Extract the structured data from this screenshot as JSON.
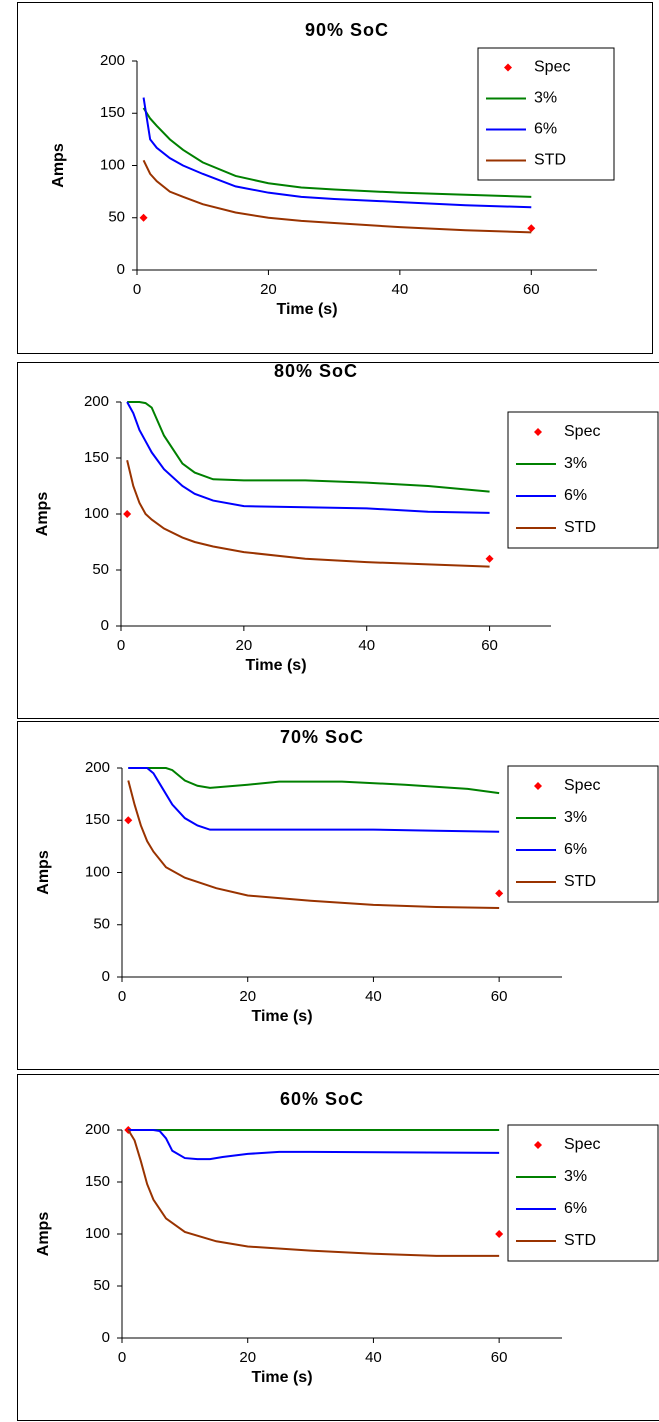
{
  "chart_data": [
    {
      "type": "line",
      "title": "90% SoC",
      "x_label": "Time (s)",
      "y_label": "Amps",
      "xlim": [
        0,
        70
      ],
      "xticks": [
        0,
        20,
        40,
        60
      ],
      "ylim": [
        0,
        200
      ],
      "yticks": [
        0,
        50,
        100,
        150,
        200
      ],
      "grid": false,
      "legend": "upper right",
      "series": [
        {
          "name": "Spec",
          "color": "#ff0000",
          "style": "marker",
          "x": [
            1,
            60
          ],
          "values": [
            50,
            40
          ]
        },
        {
          "name": "3%",
          "color": "#008000",
          "style": "line",
          "x": [
            1,
            2,
            3,
            5,
            7,
            10,
            15,
            20,
            25,
            30,
            40,
            50,
            60
          ],
          "values": [
            155,
            145,
            138,
            125,
            115,
            103,
            90,
            83,
            79,
            77,
            74,
            72,
            70
          ]
        },
        {
          "name": "6%",
          "color": "#0000ff",
          "style": "line",
          "x": [
            1,
            2,
            3,
            5,
            7,
            10,
            15,
            20,
            25,
            30,
            40,
            50,
            60
          ],
          "values": [
            165,
            125,
            117,
            107,
            100,
            92,
            80,
            74,
            70,
            68,
            65,
            62,
            60
          ]
        },
        {
          "name": "STD",
          "color": "#993300",
          "style": "line",
          "x": [
            1,
            2,
            3,
            5,
            7,
            10,
            15,
            20,
            25,
            30,
            40,
            50,
            60
          ],
          "values": [
            105,
            92,
            85,
            75,
            70,
            63,
            55,
            50,
            47,
            45,
            41,
            38,
            36
          ]
        }
      ]
    },
    {
      "type": "line",
      "title": "80% SoC",
      "x_label": "Time (s)",
      "y_label": "Amps",
      "xlim": [
        0,
        70
      ],
      "xticks": [
        0,
        20,
        40,
        60
      ],
      "ylim": [
        0,
        200
      ],
      "yticks": [
        0,
        50,
        100,
        150,
        200
      ],
      "grid": false,
      "legend": "upper right",
      "series": [
        {
          "name": "Spec",
          "color": "#ff0000",
          "style": "marker",
          "x": [
            1,
            60
          ],
          "values": [
            100,
            60
          ]
        },
        {
          "name": "3%",
          "color": "#008000",
          "style": "line",
          "x": [
            1,
            2,
            3,
            4,
            5,
            7,
            10,
            12,
            15,
            20,
            30,
            40,
            50,
            60
          ],
          "values": [
            200,
            200,
            200,
            199,
            195,
            170,
            145,
            137,
            131,
            130,
            130,
            128,
            125,
            120
          ]
        },
        {
          "name": "6%",
          "color": "#0000ff",
          "style": "line",
          "x": [
            1,
            2,
            3,
            4,
            5,
            7,
            10,
            12,
            15,
            20,
            30,
            40,
            50,
            60
          ],
          "values": [
            200,
            190,
            175,
            165,
            155,
            140,
            125,
            118,
            112,
            107,
            106,
            105,
            102,
            101
          ]
        },
        {
          "name": "STD",
          "color": "#993300",
          "style": "line",
          "x": [
            1,
            2,
            3,
            4,
            5,
            7,
            10,
            12,
            15,
            20,
            30,
            40,
            50,
            60
          ],
          "values": [
            148,
            125,
            110,
            100,
            95,
            87,
            79,
            75,
            71,
            66,
            60,
            57,
            55,
            53
          ]
        }
      ]
    },
    {
      "type": "line",
      "title": "70% SoC",
      "x_label": "Time (s)",
      "y_label": "Amps",
      "xlim": [
        0,
        70
      ],
      "xticks": [
        0,
        20,
        40,
        60
      ],
      "ylim": [
        0,
        200
      ],
      "yticks": [
        0,
        50,
        100,
        150,
        200
      ],
      "grid": false,
      "legend": "upper right",
      "series": [
        {
          "name": "Spec",
          "color": "#ff0000",
          "style": "marker",
          "x": [
            1,
            60
          ],
          "values": [
            150,
            80
          ]
        },
        {
          "name": "3%",
          "color": "#008000",
          "style": "line",
          "x": [
            1,
            3,
            5,
            7,
            8,
            10,
            12,
            14,
            20,
            25,
            35,
            45,
            55,
            60
          ],
          "values": [
            200,
            200,
            200,
            200,
            198,
            188,
            183,
            181,
            184,
            187,
            187,
            184,
            180,
            176
          ]
        },
        {
          "name": "6%",
          "color": "#0000ff",
          "style": "line",
          "x": [
            1,
            3,
            4,
            5,
            6,
            8,
            10,
            12,
            14,
            20,
            30,
            40,
            50,
            60
          ],
          "values": [
            200,
            200,
            200,
            195,
            185,
            165,
            152,
            145,
            141,
            141,
            141,
            141,
            140,
            139
          ]
        },
        {
          "name": "STD",
          "color": "#993300",
          "style": "line",
          "x": [
            1,
            2,
            3,
            4,
            5,
            7,
            10,
            15,
            20,
            30,
            40,
            50,
            60
          ],
          "values": [
            188,
            165,
            145,
            130,
            120,
            105,
            95,
            85,
            78,
            73,
            69,
            67,
            66
          ]
        }
      ]
    },
    {
      "type": "line",
      "title": "60% SoC",
      "x_label": "Time (s)",
      "y_label": "Amps",
      "xlim": [
        0,
        70
      ],
      "xticks": [
        0,
        20,
        40,
        60
      ],
      "ylim": [
        0,
        200
      ],
      "yticks": [
        0,
        50,
        100,
        150,
        200
      ],
      "grid": false,
      "legend": "upper right",
      "series": [
        {
          "name": "Spec",
          "color": "#ff0000",
          "style": "marker",
          "x": [
            1,
            60
          ],
          "values": [
            200,
            100
          ]
        },
        {
          "name": "3%",
          "color": "#008000",
          "style": "line",
          "x": [
            1,
            20,
            40,
            60
          ],
          "values": [
            200,
            200,
            200,
            200
          ]
        },
        {
          "name": "6%",
          "color": "#0000ff",
          "style": "line",
          "x": [
            1,
            5,
            6,
            7,
            8,
            10,
            12,
            14,
            16,
            20,
            25,
            30,
            60
          ],
          "values": [
            200,
            200,
            199,
            192,
            180,
            173,
            172,
            172,
            174,
            177,
            179,
            179,
            178
          ]
        },
        {
          "name": "STD",
          "color": "#993300",
          "style": "line",
          "x": [
            1,
            2,
            3,
            4,
            5,
            7,
            10,
            15,
            20,
            30,
            40,
            50,
            60
          ],
          "values": [
            200,
            190,
            170,
            148,
            133,
            115,
            102,
            93,
            88,
            84,
            81,
            79,
            79
          ]
        }
      ]
    }
  ]
}
